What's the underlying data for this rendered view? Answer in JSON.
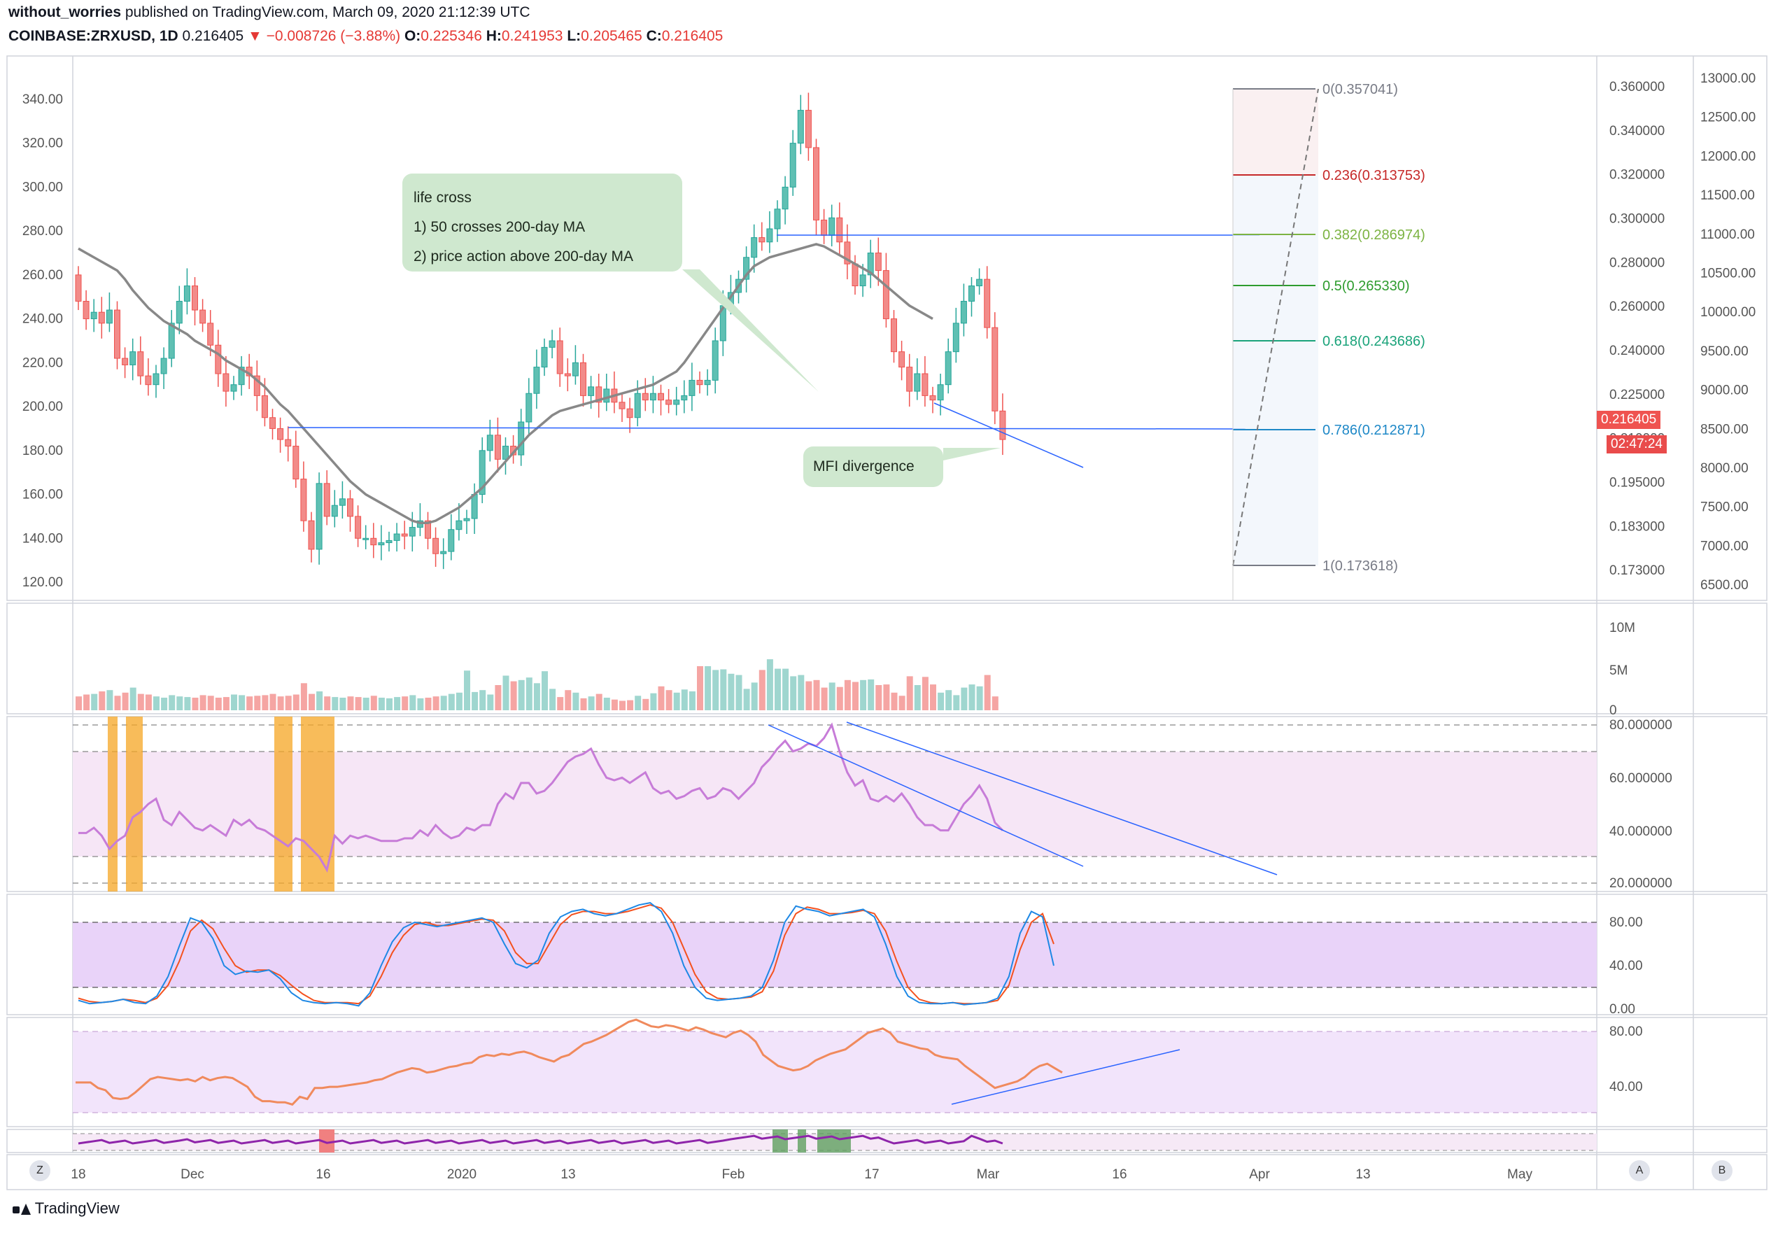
{
  "header": {
    "author": "without_worries",
    "published_text": "published on TradingView.com, March 09, 2020 21:12:39 UTC",
    "symbol": "COINBASE:ZRXUSD, 1D",
    "last": "0.216405",
    "arrow": "▼",
    "change": "−0.008726 (−3.88%)",
    "o_label": "O:",
    "o": "0.225346",
    "h_label": "H:",
    "h": "0.241953",
    "l_label": "L:",
    "l": "0.205465",
    "c_label": "C:",
    "c": "0.216405"
  },
  "annotations": {
    "life_cross": [
      "life cross",
      "1) 50 crosses 200-day MA",
      "2) price action above 200-day MA"
    ],
    "mfi": "MFI divergence"
  },
  "badges": {
    "price": "0.216405",
    "countdown": "02:47:24"
  },
  "footer": {
    "brand": "TradingView"
  },
  "buttons": {
    "z": "Z",
    "a": "A",
    "b": "B"
  },
  "colors": {
    "up": "#26a69a",
    "down": "#ef5350",
    "accent": "#2962ff",
    "rsi": "#c77cd8",
    "ma": "#888888"
  },
  "chart_data": {
    "type": "candlestick",
    "symbol": "COINBASE:ZRXUSD",
    "interval": "1D",
    "left_axis": [
      340.0,
      320.0,
      300.0,
      280.0,
      260.0,
      240.0,
      220.0,
      200.0,
      180.0,
      160.0,
      140.0,
      120.0
    ],
    "right_axis_price": [
      "0.360000",
      "0.340000",
      "0.320000",
      "0.300000",
      "0.280000",
      "0.260000",
      "0.240000",
      "0.225000",
      "0.210000",
      "0.195000",
      "0.183000",
      "0.173000"
    ],
    "right_axis_2": [
      "13000.00",
      "12500.00",
      "12000.00",
      "11500.00",
      "11000.00",
      "10500.00",
      "10000.00",
      "9500.00",
      "9000.00",
      "8500.00",
      "8000.00",
      "7500.00",
      "7000.00",
      "6500.00"
    ],
    "x_labels": [
      "18",
      "Dec",
      "16",
      "2020",
      "13",
      "Feb",
      "17",
      "Mar",
      "16",
      "Apr",
      "13",
      "May"
    ],
    "closes": [
      248,
      240,
      243,
      238,
      244,
      222,
      219,
      225,
      214,
      210,
      215,
      222,
      238,
      248,
      255,
      244,
      238,
      228,
      215,
      207,
      210,
      218,
      214,
      205,
      195,
      190,
      185,
      182,
      167,
      148,
      135,
      165,
      150,
      155,
      158,
      150,
      140,
      140,
      137,
      138,
      139,
      142,
      141,
      145,
      148,
      140,
      133,
      134,
      144,
      148,
      149,
      160,
      180,
      187,
      176,
      182,
      178,
      193,
      206,
      218,
      227,
      230,
      215,
      214,
      220,
      205,
      209,
      202,
      208,
      202,
      199,
      195,
      206,
      203,
      206,
      203,
      201,
      203,
      205,
      212,
      210,
      212,
      230,
      246,
      252,
      258,
      268,
      277,
      275,
      281,
      290,
      300,
      320,
      335,
      318,
      285,
      278,
      286,
      275,
      265,
      255,
      260,
      270,
      262,
      240,
      225,
      218,
      207,
      215,
      205,
      203,
      210,
      225,
      238,
      248,
      255,
      258,
      236,
      198,
      185
    ],
    "opens": [
      260,
      248,
      240,
      243,
      238,
      244,
      222,
      219,
      225,
      214,
      210,
      215,
      222,
      238,
      248,
      255,
      244,
      238,
      228,
      215,
      207,
      210,
      218,
      214,
      205,
      195,
      190,
      185,
      182,
      167,
      148,
      135,
      165,
      150,
      155,
      158,
      150,
      140,
      140,
      137,
      138,
      139,
      142,
      141,
      145,
      148,
      140,
      133,
      134,
      144,
      148,
      149,
      160,
      180,
      187,
      176,
      182,
      178,
      193,
      206,
      218,
      227,
      230,
      215,
      214,
      220,
      205,
      209,
      202,
      208,
      202,
      199,
      195,
      206,
      203,
      206,
      203,
      201,
      203,
      205,
      212,
      210,
      212,
      230,
      246,
      252,
      258,
      268,
      277,
      275,
      281,
      290,
      300,
      320,
      335,
      318,
      285,
      278,
      286,
      275,
      265,
      255,
      260,
      270,
      262,
      240,
      225,
      218,
      207,
      215,
      205,
      203,
      210,
      225,
      238,
      248,
      255,
      258,
      236,
      198
    ],
    "ma": [
      272,
      270,
      268,
      266,
      264,
      262,
      258,
      253,
      249,
      245,
      242,
      239,
      237,
      235,
      233,
      230,
      228,
      226,
      224,
      221,
      219,
      217,
      215,
      212,
      209,
      205,
      201,
      198,
      194,
      190,
      186,
      182,
      178,
      174,
      170,
      166,
      163,
      160,
      158,
      156,
      154,
      152,
      150,
      148,
      147,
      147,
      148,
      150,
      152,
      154,
      157,
      160,
      163,
      167,
      171,
      175,
      179,
      183,
      187,
      190,
      193,
      196,
      198,
      199,
      200,
      201,
      202,
      203,
      204,
      205,
      206,
      207,
      208,
      209,
      210,
      212,
      214,
      216,
      220,
      225,
      230,
      235,
      240,
      245,
      250,
      255,
      260,
      264,
      266,
      268,
      269,
      270,
      271,
      272,
      273,
      274,
      273,
      271,
      269,
      267,
      265,
      263,
      261,
      258,
      255,
      252,
      249,
      246,
      244,
      242,
      240
    ],
    "volume_axis": [
      "10M",
      "5M",
      "0"
    ],
    "volumes": [
      2.2,
      2.5,
      2.6,
      3.0,
      3.2,
      2.3,
      2.8,
      3.6,
      2.6,
      2.5,
      2.2,
      2.0,
      2.4,
      2.2,
      2.1,
      2.0,
      2.4,
      2.3,
      2.0,
      2.1,
      2.5,
      2.4,
      2.2,
      2.3,
      2.4,
      2.6,
      2.2,
      2.3,
      2.5,
      4.3,
      2.6,
      3.0,
      2.2,
      2.1,
      2.0,
      2.2,
      2.1,
      2.0,
      2.3,
      2.0,
      1.9,
      2.1,
      2.2,
      2.4,
      1.9,
      2.0,
      2.2,
      2.3,
      2.6,
      2.8,
      6.3,
      2.9,
      3.2,
      2.5,
      4.0,
      5.5,
      4.6,
      4.8,
      5.2,
      4.3,
      6.2,
      3.4,
      2.1,
      3.2,
      2.8,
      1.9,
      2.2,
      2.6,
      2.0,
      1.7,
      1.5,
      1.6,
      2.3,
      1.8,
      2.7,
      3.8,
      3.2,
      2.8,
      3.3,
      3.0,
      7.0,
      7.0,
      6.4,
      6.5,
      5.8,
      5.6,
      3.4,
      4.4,
      6.4,
      8.1,
      6.6,
      6.6,
      5.4,
      5.6,
      4.6,
      4.8,
      3.6,
      4.4,
      3.7,
      4.8,
      4.5,
      4.8,
      4.9,
      4.0,
      4.1,
      2.8,
      2.3,
      5.4,
      4.0,
      5.3,
      4.1,
      2.8,
      3.2,
      2.4,
      3.6,
      4.1,
      3.8,
      5.6,
      2.2
    ],
    "rsi_axis": [
      "80.000000",
      "60.000000",
      "40.000000",
      "20.000000"
    ],
    "rsi": [
      39,
      39,
      41,
      38,
      33,
      36,
      38,
      45,
      47,
      50,
      52,
      44,
      42,
      47,
      44,
      41,
      40,
      42,
      40,
      38,
      44,
      42,
      44,
      41,
      40,
      38,
      36,
      34,
      37,
      36,
      33,
      30,
      25,
      38,
      35,
      38,
      37,
      38,
      37,
      36,
      36,
      36,
      37,
      37,
      40,
      38,
      42,
      39,
      37,
      38,
      41,
      40,
      42,
      42,
      50,
      54,
      52,
      58,
      58,
      54,
      55,
      58,
      62,
      66,
      68,
      69,
      71,
      65,
      60,
      59,
      60,
      58,
      60,
      62,
      56,
      54,
      55,
      52,
      53,
      55,
      56,
      52,
      53,
      56,
      55,
      52,
      55,
      58,
      64,
      67,
      71,
      74,
      70,
      71,
      73,
      72,
      75,
      80,
      70,
      62,
      57,
      59,
      52,
      51,
      53,
      51,
      54,
      50,
      45,
      42,
      42,
      40,
      40,
      45,
      50,
      53,
      57,
      52,
      43,
      40
    ],
    "stoch_axis": [
      "80.00",
      "40.00",
      "0.00"
    ],
    "stoch_k": [
      8,
      5,
      6,
      7,
      9,
      6,
      5,
      12,
      30,
      58,
      84,
      80,
      65,
      40,
      32,
      35,
      34,
      36,
      28,
      15,
      8,
      6,
      5,
      6,
      5,
      3,
      15,
      40,
      62,
      75,
      80,
      78,
      76,
      78,
      80,
      82,
      84,
      80,
      60,
      42,
      38,
      45,
      70,
      85,
      90,
      92,
      88,
      86,
      88,
      92,
      96,
      98,
      90,
      70,
      40,
      20,
      10,
      8,
      9,
      10,
      12,
      20,
      45,
      80,
      95,
      92,
      90,
      86,
      88,
      90,
      92,
      85,
      60,
      30,
      12,
      6,
      5,
      5,
      6,
      4,
      5,
      6,
      10,
      30,
      70,
      90,
      85,
      40
    ],
    "stoch_d": [
      10,
      7,
      6,
      7,
      9,
      8,
      6,
      10,
      22,
      44,
      72,
      82,
      74,
      56,
      40,
      34,
      36,
      36,
      31,
      22,
      14,
      8,
      6,
      6,
      6,
      5,
      12,
      30,
      52,
      68,
      78,
      80,
      77,
      77,
      79,
      81,
      83,
      82,
      72,
      52,
      42,
      42,
      60,
      78,
      87,
      90,
      90,
      88,
      88,
      90,
      93,
      96,
      93,
      80,
      56,
      32,
      16,
      10,
      9,
      10,
      11,
      16,
      35,
      68,
      88,
      94,
      92,
      88,
      88,
      89,
      91,
      88,
      72,
      44,
      20,
      9,
      6,
      5,
      6,
      5,
      5,
      6,
      8,
      22,
      55,
      80,
      88,
      60
    ],
    "mfi_axis": [
      "80.00",
      "40.00"
    ],
    "mfi": [
      35,
      35,
      35,
      30,
      28,
      21,
      20,
      21,
      26,
      32,
      38,
      40,
      39,
      38,
      37,
      38,
      36,
      40,
      37,
      39,
      40,
      39,
      35,
      31,
      22,
      18,
      18,
      17,
      17,
      15,
      22,
      20,
      30,
      30,
      31,
      31,
      32,
      33,
      34,
      35,
      37,
      38,
      41,
      44,
      46,
      48,
      47,
      44,
      45,
      47,
      49,
      50,
      52,
      53,
      58,
      60,
      59,
      61,
      60,
      62,
      63,
      61,
      58,
      56,
      54,
      58,
      60,
      65,
      70,
      72,
      75,
      78,
      82,
      86,
      90,
      92,
      89,
      86,
      85,
      87,
      86,
      84,
      82,
      85,
      83,
      80,
      78,
      76,
      80,
      82,
      78,
      72,
      60,
      55,
      50,
      48,
      46,
      47,
      50,
      55,
      58,
      61,
      63,
      65,
      70,
      75,
      80,
      82,
      84,
      80,
      72,
      70,
      68,
      66,
      65,
      60,
      58,
      57,
      56,
      50,
      45,
      40,
      35,
      30,
      32,
      34,
      36,
      40,
      46,
      50,
      52,
      48,
      44
    ],
    "fib_levels": [
      {
        "label": "0(0.357041)",
        "color": "#787b86"
      },
      {
        "label": "0.236(0.313753)",
        "color": "#c62828"
      },
      {
        "label": "0.382(0.286974)",
        "color": "#7cb342"
      },
      {
        "label": "0.5(0.265330)",
        "color": "#2e9c2e"
      },
      {
        "label": "0.618(0.243686)",
        "color": "#1aa37a"
      },
      {
        "label": "0.786(0.212871)",
        "color": "#1e88c7"
      },
      {
        "label": "1(0.173618)",
        "color": "#787b86"
      }
    ]
  }
}
